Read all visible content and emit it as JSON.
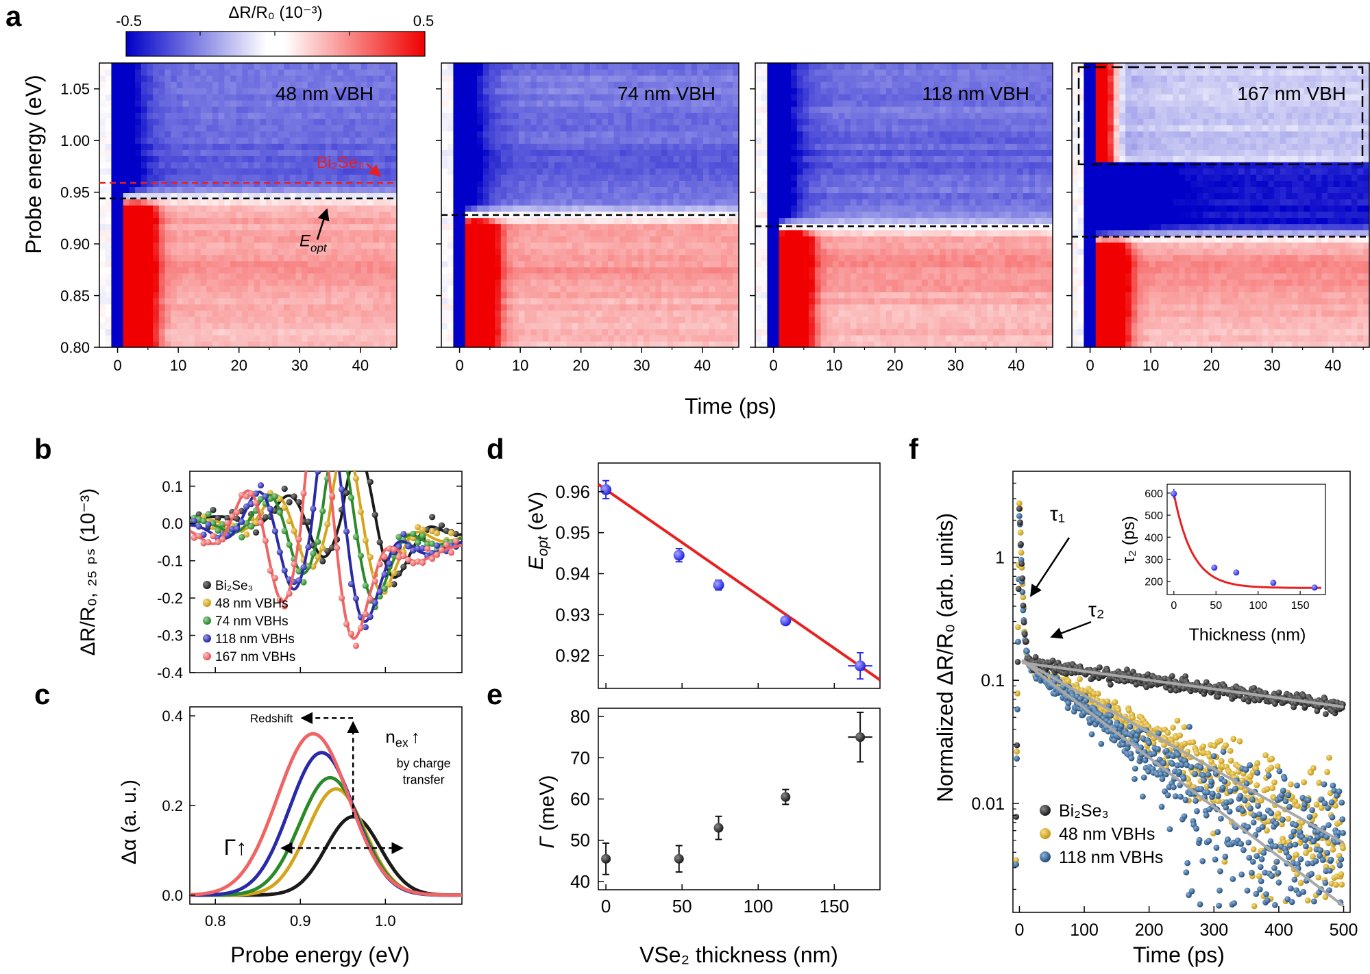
{
  "panel_labels": {
    "a": "a",
    "b": "b",
    "c": "c",
    "d": "d",
    "e": "e",
    "f": "f"
  },
  "colors": {
    "bi2se3": "#1a1a1a",
    "vbh48": "#d4a51c",
    "vbh74": "#2a8a2a",
    "vbh118": "#2a2aa8",
    "vbh167": "#ef6464",
    "blue_dot": "#2a2ae8",
    "fit_red": "#e82020",
    "fit_gray": "#a8a8a8",
    "f_blue": "#234f7a",
    "map_neg": "#0000c8",
    "map_pos": "#f00000"
  },
  "chart_data": [
    {
      "id": "a",
      "type": "heatmap",
      "colorbar": {
        "title": "ΔR/R₀ (10⁻³)",
        "min": -0.5,
        "max": 0.5,
        "min_label": "-0.5",
        "max_label": "0.5"
      },
      "xlabel": "Time (ps)",
      "ylabel": "Probe energy (eV)",
      "xlim": [
        -3,
        46
      ],
      "ylim": [
        0.8,
        1.075
      ],
      "xticks": [
        0,
        10,
        20,
        30,
        40
      ],
      "yticks": [
        "0.80",
        "0.85",
        "0.90",
        "0.95",
        "1.00",
        "1.05"
      ],
      "subplots": [
        {
          "label": "48 nm VBH",
          "e_opt": 0.944,
          "bi2se3_line": 0.959
        },
        {
          "label": "74 nm VBH",
          "e_opt": 0.928
        },
        {
          "label": "118 nm VBH",
          "e_opt": 0.917
        },
        {
          "label": "167 nm VBH",
          "e_opt": 0.907,
          "dashed_box": [
            0.977,
            1.075
          ]
        }
      ],
      "annotations": {
        "bi2se3": "Bi₂Se₃",
        "e_opt_main": "E",
        "e_opt_sub": "opt"
      }
    },
    {
      "id": "b",
      "type": "scatter",
      "ylabel": "ΔR/R₀, ₂₅ ₚₛ (10⁻³)",
      "xlim": [
        0.77,
        1.09
      ],
      "ylim": [
        -0.4,
        0.14
      ],
      "yticks": [
        "0.1",
        "0.0",
        "-0.1",
        "-0.2",
        "-0.3",
        "-0.4"
      ],
      "legend": [
        "Bi₂Se₃",
        "48 nm VBHs",
        "74 nm VBHs",
        "118 nm VBHs",
        "167 nm VBHs"
      ],
      "series": [
        {
          "name": "Bi₂Se₃",
          "offset": 0.015,
          "center": 0.948,
          "amp": 0.205,
          "width": 0.087
        },
        {
          "name": "48 nm VBHs",
          "offset": 0.005,
          "center": 0.933,
          "amp": 0.24,
          "width": 0.087
        },
        {
          "name": "74 nm VBHs",
          "offset": 0.0,
          "center": 0.924,
          "amp": 0.262,
          "width": 0.087
        },
        {
          "name": "118 nm VBHs",
          "offset": -0.01,
          "center": 0.913,
          "amp": 0.325,
          "width": 0.087
        },
        {
          "name": "167 nm VBHs",
          "offset": -0.02,
          "center": 0.9,
          "amp": 0.37,
          "width": 0.087
        }
      ]
    },
    {
      "id": "c",
      "type": "line",
      "xlabel": "Probe energy (eV)",
      "ylabel": "Δα (a. u.)",
      "xlim": [
        0.77,
        1.09
      ],
      "ylim": [
        -0.02,
        0.42
      ],
      "xticks": [
        "0.8",
        "0.9",
        "1.0"
      ],
      "yticks": [
        "0.0",
        "0.2",
        "0.4"
      ],
      "series": [
        {
          "name": "Bi₂Se₃",
          "center": 0.962,
          "amp": 0.175,
          "sigma": 0.032
        },
        {
          "name": "48 nm VBHs",
          "center": 0.942,
          "amp": 0.237,
          "sigma": 0.034
        },
        {
          "name": "74 nm VBHs",
          "center": 0.935,
          "amp": 0.262,
          "sigma": 0.036
        },
        {
          "name": "118 nm VBHs",
          "center": 0.925,
          "amp": 0.318,
          "sigma": 0.038
        },
        {
          "name": "167 nm VBHs",
          "center": 0.915,
          "amp": 0.36,
          "sigma": 0.042
        }
      ],
      "annotations": {
        "redshift": "Redshift",
        "nex": "n",
        "nex_sub": "ex",
        "nex_arrow": "↑",
        "charge1": "by charge",
        "charge2": "transfer",
        "gamma": "Γ↑"
      }
    },
    {
      "id": "d",
      "type": "scatter",
      "ylabel": "E",
      "ylabel_sub": "opt",
      "ylabel_unit": " (eV)",
      "xlim": [
        -5,
        180
      ],
      "ylim": [
        0.912,
        0.967
      ],
      "yticks": [
        "0.92",
        "0.93",
        "0.94",
        "0.95",
        "0.96"
      ],
      "points": [
        {
          "x": 0,
          "y": 0.9605,
          "yerr": 0.0022
        },
        {
          "x": 48,
          "y": 0.9445,
          "yerr": 0.0016
        },
        {
          "x": 74,
          "y": 0.9372,
          "yerr": 0.0012
        },
        {
          "x": 118,
          "y": 0.9285,
          "yerr": 0.0005
        },
        {
          "x": 167,
          "y": 0.9175,
          "yerr": 0.0032,
          "xerr": 8
        }
      ],
      "fit": {
        "x": [
          -5,
          180
        ],
        "slope": -0.000258,
        "intercept": 0.9605
      }
    },
    {
      "id": "e",
      "type": "scatter",
      "xlabel": "VSe₂ thickness (nm)",
      "ylabel": "Γ",
      "ylabel_unit": " (meV)",
      "xlim": [
        -5,
        180
      ],
      "ylim": [
        38,
        82
      ],
      "xticks": [
        "0",
        "50",
        "100",
        "150"
      ],
      "yticks": [
        "40",
        "50",
        "60",
        "70",
        "80"
      ],
      "points": [
        {
          "x": 0,
          "y": 45.5,
          "yerr": 3.8
        },
        {
          "x": 48,
          "y": 45.5,
          "yerr": 3.2,
          "xerr": 3
        },
        {
          "x": 74,
          "y": 53,
          "yerr": 2.8
        },
        {
          "x": 118,
          "y": 60.5,
          "yerr": 1.8
        },
        {
          "x": 167,
          "y": 75,
          "yerr": 6,
          "xerr": 8
        }
      ]
    },
    {
      "id": "f",
      "type": "scatter",
      "scale": "log",
      "xlabel": "Time (ps)",
      "ylabel": "Normalized ΔR/R₀ (arb. units)",
      "xlim": [
        -10,
        510
      ],
      "ylim": [
        0.0013,
        5
      ],
      "xticks": [
        "0",
        "100",
        "200",
        "300",
        "400",
        "500"
      ],
      "yticks": [
        "0.01",
        "0.1",
        "1"
      ],
      "legend": [
        "Bi₂Se₃",
        "48 nm VBHs",
        "118 nm VBHs"
      ],
      "series": [
        {
          "name": "Bi₂Se₃",
          "peak": 3.0,
          "fast_tau": 2.5,
          "tau2": 600,
          "plateau": 0.14
        },
        {
          "name": "48 nm VBHs",
          "peak": 3.2,
          "fast_tau": 2.5,
          "tau2": 145,
          "plateau": 0.15
        },
        {
          "name": "118 nm VBHs",
          "peak": 2.5,
          "fast_tau": 2.5,
          "tau2": 108,
          "plateau": 0.15
        }
      ],
      "labels": {
        "tau1": "τ₁",
        "tau2": "τ₂"
      },
      "inset": {
        "xlabel": "Thickness (nm)",
        "ylabel": "τ₂ (ps)",
        "xlim": [
          -8,
          180
        ],
        "ylim": [
          140,
          640
        ],
        "xticks": [
          "0",
          "50",
          "100",
          "150"
        ],
        "yticks": [
          "200",
          "300",
          "400",
          "500",
          "600"
        ],
        "points": [
          {
            "x": 0,
            "y": 597,
            "yerr": 22
          },
          {
            "x": 48,
            "y": 262,
            "yerr": 7
          },
          {
            "x": 74,
            "y": 240,
            "yerr": 6
          },
          {
            "x": 118,
            "y": 193,
            "yerr": 6
          },
          {
            "x": 167,
            "y": 172,
            "yerr": 5
          }
        ]
      }
    }
  ]
}
